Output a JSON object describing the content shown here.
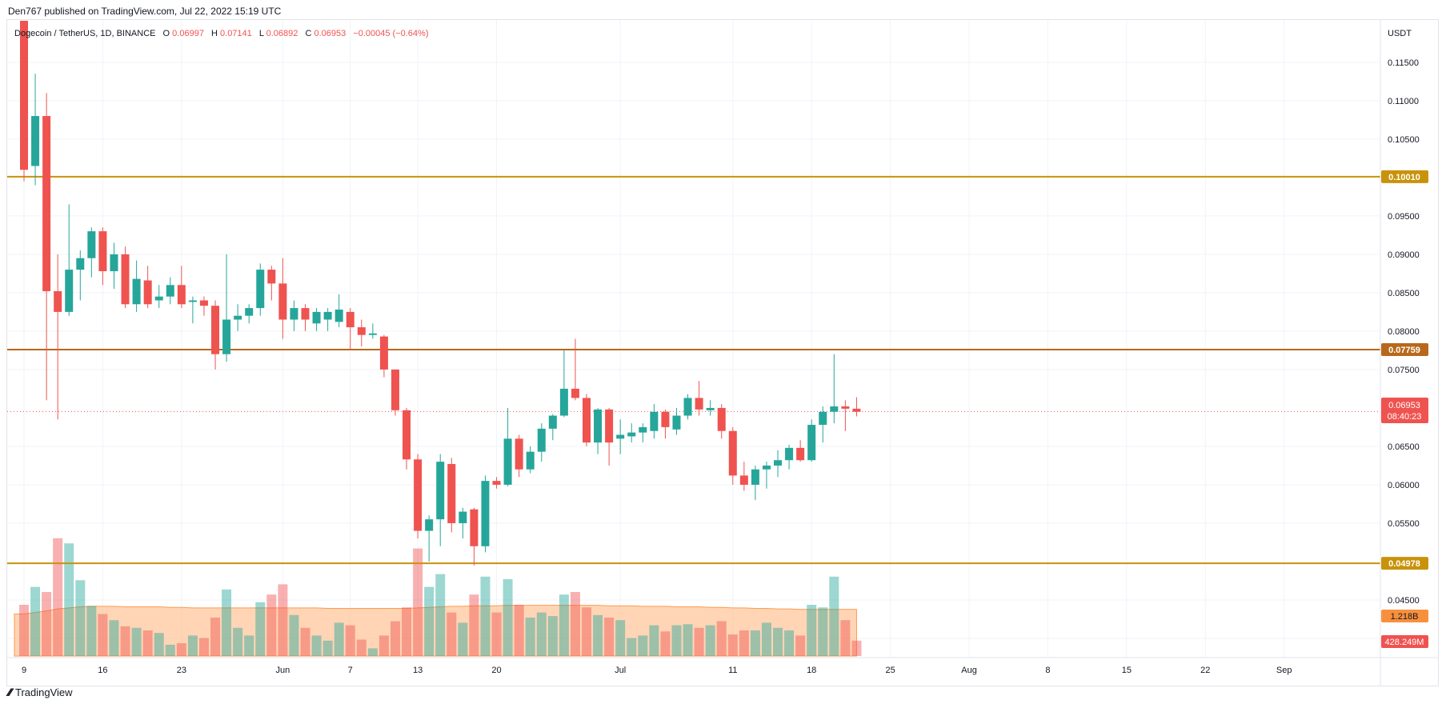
{
  "header": {
    "published": "Den767 published on TradingView.com, Jul 22, 2022 15:19 UTC",
    "symbol": "Dogecoin / TetherUS, 1D, BINANCE",
    "o_label": "O",
    "o_value": "0.06997",
    "h_label": "H",
    "h_value": "0.07141",
    "l_label": "L",
    "l_value": "0.06892",
    "c_label": "C",
    "c_value": "0.06953",
    "change": "−0.00045 (−0.64%)"
  },
  "footer": {
    "brand": "TradingView"
  },
  "colors": {
    "up": "#26a69a",
    "down": "#ef5350",
    "level": "#c8930a",
    "level_dark": "#b8681b",
    "grid": "#f0f3fa",
    "text": "#131722",
    "axis_text": "#131722",
    "volume_ma": "#ff9a4d",
    "volume_up": "#8fd0c8",
    "volume_down": "#f5a3a1"
  },
  "chart_data": {
    "type": "candlestick",
    "y_unit": "USDT",
    "ylim": [
      0.0375,
      0.1205
    ],
    "y_ticks": [
      "0.11500",
      "0.11000",
      "0.10500",
      "0.09500",
      "0.09000",
      "0.08500",
      "0.08000",
      "0.07500",
      "0.06500",
      "0.06000",
      "0.05500",
      "0.04500",
      "0.04000"
    ],
    "x_ticks": [
      {
        "day": 0,
        "label": "9"
      },
      {
        "day": 7,
        "label": "16"
      },
      {
        "day": 14,
        "label": "23"
      },
      {
        "day": 23,
        "label": "Jun"
      },
      {
        "day": 29,
        "label": "7"
      },
      {
        "day": 35,
        "label": "13"
      },
      {
        "day": 42,
        "label": "20"
      },
      {
        "day": 53,
        "label": "Jul"
      },
      {
        "day": 63,
        "label": "11"
      },
      {
        "day": 70,
        "label": "18"
      },
      {
        "day": 77,
        "label": "25"
      },
      {
        "day": 84,
        "label": "Aug"
      },
      {
        "day": 91,
        "label": "8"
      },
      {
        "day": 98,
        "label": "15"
      },
      {
        "day": 105,
        "label": "22"
      },
      {
        "day": 112,
        "label": "Sep"
      }
    ],
    "levels": [
      {
        "value": 0.1001,
        "label": "0.10010",
        "color": "level"
      },
      {
        "value": 0.07759,
        "label": "0.07759",
        "color": "level_dark"
      },
      {
        "value": 0.04978,
        "label": "0.04978",
        "color": "level"
      }
    ],
    "last_price": {
      "value": 0.06953,
      "label": "0.06953",
      "countdown": "08:40:23"
    },
    "volume_labels": [
      {
        "label": "1.218B",
        "color": "#f7903d"
      },
      {
        "label": "428.249M",
        "color": "#ef5350"
      }
    ],
    "candles": [
      {
        "o": 0.126,
        "h": 0.13,
        "l": 0.0995,
        "c": 0.101
      },
      {
        "o": 0.1015,
        "h": 0.1135,
        "l": 0.099,
        "c": 0.108
      },
      {
        "o": 0.108,
        "h": 0.111,
        "l": 0.071,
        "c": 0.0852
      },
      {
        "o": 0.0852,
        "h": 0.09,
        "l": 0.0685,
        "c": 0.0825
      },
      {
        "o": 0.0825,
        "h": 0.0965,
        "l": 0.082,
        "c": 0.088
      },
      {
        "o": 0.088,
        "h": 0.0905,
        "l": 0.084,
        "c": 0.0895
      },
      {
        "o": 0.0895,
        "h": 0.0935,
        "l": 0.087,
        "c": 0.093
      },
      {
        "o": 0.093,
        "h": 0.0935,
        "l": 0.086,
        "c": 0.0878
      },
      {
        "o": 0.0878,
        "h": 0.0915,
        "l": 0.0855,
        "c": 0.09
      },
      {
        "o": 0.09,
        "h": 0.091,
        "l": 0.083,
        "c": 0.0835
      },
      {
        "o": 0.0835,
        "h": 0.0892,
        "l": 0.0825,
        "c": 0.0868
      },
      {
        "o": 0.0866,
        "h": 0.0885,
        "l": 0.083,
        "c": 0.0835
      },
      {
        "o": 0.084,
        "h": 0.086,
        "l": 0.083,
        "c": 0.0845
      },
      {
        "o": 0.0845,
        "h": 0.087,
        "l": 0.0835,
        "c": 0.086
      },
      {
        "o": 0.086,
        "h": 0.0885,
        "l": 0.083,
        "c": 0.0835
      },
      {
        "o": 0.0838,
        "h": 0.0845,
        "l": 0.081,
        "c": 0.084
      },
      {
        "o": 0.084,
        "h": 0.0845,
        "l": 0.082,
        "c": 0.0833
      },
      {
        "o": 0.0833,
        "h": 0.084,
        "l": 0.075,
        "c": 0.077
      },
      {
        "o": 0.077,
        "h": 0.09,
        "l": 0.076,
        "c": 0.0815
      },
      {
        "o": 0.0815,
        "h": 0.0835,
        "l": 0.08,
        "c": 0.082
      },
      {
        "o": 0.082,
        "h": 0.0835,
        "l": 0.081,
        "c": 0.083
      },
      {
        "o": 0.083,
        "h": 0.0888,
        "l": 0.082,
        "c": 0.088
      },
      {
        "o": 0.088,
        "h": 0.0885,
        "l": 0.084,
        "c": 0.0862
      },
      {
        "o": 0.0862,
        "h": 0.0895,
        "l": 0.079,
        "c": 0.0815
      },
      {
        "o": 0.0815,
        "h": 0.084,
        "l": 0.08,
        "c": 0.083
      },
      {
        "o": 0.083,
        "h": 0.0835,
        "l": 0.08,
        "c": 0.0815
      },
      {
        "o": 0.081,
        "h": 0.083,
        "l": 0.08,
        "c": 0.0825
      },
      {
        "o": 0.0815,
        "h": 0.083,
        "l": 0.08,
        "c": 0.0825
      },
      {
        "o": 0.0812,
        "h": 0.0848,
        "l": 0.0805,
        "c": 0.0828
      },
      {
        "o": 0.0825,
        "h": 0.083,
        "l": 0.0775,
        "c": 0.0805
      },
      {
        "o": 0.0805,
        "h": 0.0815,
        "l": 0.078,
        "c": 0.0795
      },
      {
        "o": 0.0795,
        "h": 0.081,
        "l": 0.079,
        "c": 0.0797
      },
      {
        "o": 0.0793,
        "h": 0.0795,
        "l": 0.074,
        "c": 0.075
      },
      {
        "o": 0.075,
        "h": 0.075,
        "l": 0.069,
        "c": 0.0697
      },
      {
        "o": 0.0697,
        "h": 0.07,
        "l": 0.062,
        "c": 0.0633
      },
      {
        "o": 0.0633,
        "h": 0.064,
        "l": 0.053,
        "c": 0.054
      },
      {
        "o": 0.054,
        "h": 0.056,
        "l": 0.05,
        "c": 0.0555
      },
      {
        "o": 0.0555,
        "h": 0.064,
        "l": 0.052,
        "c": 0.063
      },
      {
        "o": 0.0627,
        "h": 0.0635,
        "l": 0.0538,
        "c": 0.055
      },
      {
        "o": 0.055,
        "h": 0.057,
        "l": 0.053,
        "c": 0.0565
      },
      {
        "o": 0.0568,
        "h": 0.057,
        "l": 0.0495,
        "c": 0.052
      },
      {
        "o": 0.052,
        "h": 0.0612,
        "l": 0.0512,
        "c": 0.0605
      },
      {
        "o": 0.0605,
        "h": 0.061,
        "l": 0.0595,
        "c": 0.06
      },
      {
        "o": 0.06,
        "h": 0.07,
        "l": 0.0598,
        "c": 0.066
      },
      {
        "o": 0.066,
        "h": 0.0665,
        "l": 0.061,
        "c": 0.062
      },
      {
        "o": 0.062,
        "h": 0.065,
        "l": 0.0615,
        "c": 0.0643
      },
      {
        "o": 0.0643,
        "h": 0.068,
        "l": 0.063,
        "c": 0.0673
      },
      {
        "o": 0.0673,
        "h": 0.0692,
        "l": 0.0658,
        "c": 0.069
      },
      {
        "o": 0.069,
        "h": 0.0775,
        "l": 0.0688,
        "c": 0.0725
      },
      {
        "o": 0.0725,
        "h": 0.079,
        "l": 0.071,
        "c": 0.0713
      },
      {
        "o": 0.0713,
        "h": 0.0718,
        "l": 0.065,
        "c": 0.0655
      },
      {
        "o": 0.0655,
        "h": 0.07,
        "l": 0.064,
        "c": 0.0698
      },
      {
        "o": 0.0698,
        "h": 0.07,
        "l": 0.0625,
        "c": 0.0655
      },
      {
        "o": 0.066,
        "h": 0.0685,
        "l": 0.064,
        "c": 0.0665
      },
      {
        "o": 0.0663,
        "h": 0.068,
        "l": 0.0655,
        "c": 0.0668
      },
      {
        "o": 0.0668,
        "h": 0.068,
        "l": 0.0655,
        "c": 0.0675
      },
      {
        "o": 0.067,
        "h": 0.0705,
        "l": 0.066,
        "c": 0.0695
      },
      {
        "o": 0.0695,
        "h": 0.0698,
        "l": 0.066,
        "c": 0.0675
      },
      {
        "o": 0.0672,
        "h": 0.07,
        "l": 0.0665,
        "c": 0.069
      },
      {
        "o": 0.069,
        "h": 0.0718,
        "l": 0.0685,
        "c": 0.0713
      },
      {
        "o": 0.0713,
        "h": 0.0735,
        "l": 0.069,
        "c": 0.0698
      },
      {
        "o": 0.0697,
        "h": 0.071,
        "l": 0.069,
        "c": 0.07
      },
      {
        "o": 0.07,
        "h": 0.0705,
        "l": 0.066,
        "c": 0.067
      },
      {
        "o": 0.067,
        "h": 0.0675,
        "l": 0.06,
        "c": 0.0612
      },
      {
        "o": 0.0612,
        "h": 0.063,
        "l": 0.0592,
        "c": 0.06
      },
      {
        "o": 0.06,
        "h": 0.0625,
        "l": 0.058,
        "c": 0.062
      },
      {
        "o": 0.062,
        "h": 0.063,
        "l": 0.0595,
        "c": 0.0625
      },
      {
        "o": 0.0625,
        "h": 0.0645,
        "l": 0.061,
        "c": 0.0632
      },
      {
        "o": 0.0632,
        "h": 0.0652,
        "l": 0.062,
        "c": 0.0648
      },
      {
        "o": 0.0648,
        "h": 0.0658,
        "l": 0.063,
        "c": 0.0632
      },
      {
        "o": 0.0632,
        "h": 0.0685,
        "l": 0.063,
        "c": 0.0678
      },
      {
        "o": 0.0678,
        "h": 0.0702,
        "l": 0.0655,
        "c": 0.0695
      },
      {
        "o": 0.0695,
        "h": 0.077,
        "l": 0.068,
        "c": 0.0702
      },
      {
        "o": 0.0702,
        "h": 0.071,
        "l": 0.067,
        "c": 0.0699
      },
      {
        "o": 0.0699,
        "h": 0.0714,
        "l": 0.0689,
        "c": 0.0695
      }
    ],
    "volume": {
      "ylim": [
        0,
        0.06
      ],
      "values": [
        1.0,
        1.35,
        1.25,
        2.3,
        2.2,
        1.48,
        0.98,
        0.82,
        0.7,
        0.58,
        0.55,
        0.5,
        0.45,
        0.22,
        0.25,
        0.4,
        0.35,
        0.75,
        1.3,
        0.55,
        0.4,
        1.05,
        1.2,
        1.4,
        0.8,
        0.55,
        0.4,
        0.3,
        0.65,
        0.6,
        0.32,
        0.15,
        0.4,
        0.68,
        0.95,
        2.1,
        1.35,
        1.6,
        0.85,
        0.65,
        1.2,
        1.55,
        0.85,
        1.5,
        1.0,
        0.75,
        0.85,
        0.78,
        1.2,
        1.25,
        0.95,
        0.8,
        0.75,
        0.7,
        0.35,
        0.4,
        0.6,
        0.48,
        0.6,
        0.62,
        0.55,
        0.6,
        0.68,
        0.42,
        0.5,
        0.5,
        0.65,
        0.55,
        0.5,
        0.4,
        1.0,
        0.95,
        1.55,
        0.7,
        0.3
      ],
      "ma": [
        0.82,
        0.85,
        0.88,
        0.92,
        0.94,
        0.96,
        0.97,
        0.97,
        0.97,
        0.96,
        0.96,
        0.96,
        0.96,
        0.95,
        0.95,
        0.94,
        0.94,
        0.94,
        0.94,
        0.94,
        0.94,
        0.94,
        0.94,
        0.94,
        0.94,
        0.94,
        0.94,
        0.93,
        0.93,
        0.93,
        0.93,
        0.93,
        0.93,
        0.93,
        0.93,
        0.94,
        0.95,
        0.96,
        0.97,
        0.97,
        0.98,
        0.98,
        0.98,
        0.99,
        0.99,
        0.99,
        0.99,
        0.99,
        0.99,
        0.99,
        0.99,
        0.99,
        0.98,
        0.98,
        0.98,
        0.97,
        0.97,
        0.97,
        0.96,
        0.96,
        0.96,
        0.95,
        0.95,
        0.94,
        0.94,
        0.93,
        0.93,
        0.92,
        0.92,
        0.91,
        0.91,
        0.91,
        0.91,
        0.91,
        0.91
      ]
    }
  }
}
